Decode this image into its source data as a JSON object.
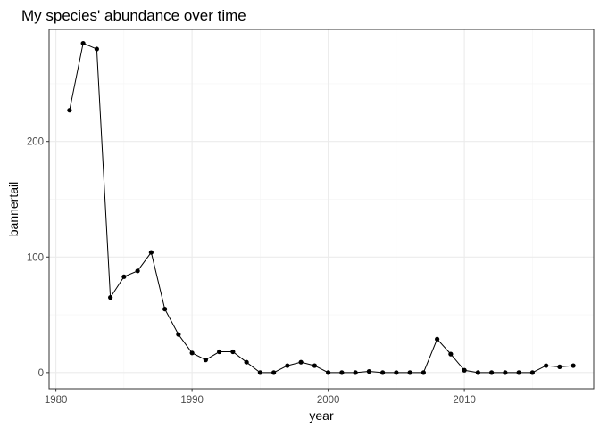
{
  "chart_data": {
    "type": "line",
    "title": "My species' abundance over time",
    "xlabel": "year",
    "ylabel": "bannertail",
    "xlim": [
      1979.5,
      2019.5
    ],
    "ylim": [
      -14,
      297
    ],
    "x_ticks": [
      1980,
      1990,
      2000,
      2010
    ],
    "y_ticks": [
      0,
      100,
      200
    ],
    "grid": true,
    "series": [
      {
        "x": [
          1981,
          1982,
          1983,
          1984,
          1985,
          1986,
          1987,
          1988,
          1989,
          1990,
          1991,
          1992,
          1993,
          1994,
          1995,
          1996,
          1997,
          1998,
          1999,
          2000,
          2001,
          2002,
          2003,
          2004,
          2005,
          2006,
          2007,
          2008,
          2009,
          2010,
          2011,
          2012,
          2013,
          2014,
          2015,
          2016,
          2017,
          2018
        ],
        "y": [
          227,
          285,
          280,
          65,
          83,
          88,
          104,
          55,
          33,
          17,
          11,
          18,
          18,
          9,
          0,
          0,
          6,
          9,
          6,
          0,
          0,
          0,
          1,
          0,
          0,
          0,
          0,
          29,
          16,
          2,
          0,
          0,
          0,
          0,
          0,
          6,
          5,
          6
        ]
      }
    ]
  },
  "colors": {
    "line": "#000000",
    "point": "#000000",
    "grid_major": "#ebebeb",
    "grid_minor": "#f5f5f5",
    "panel_border": "#333333",
    "tick_text": "#4d4d4d"
  }
}
